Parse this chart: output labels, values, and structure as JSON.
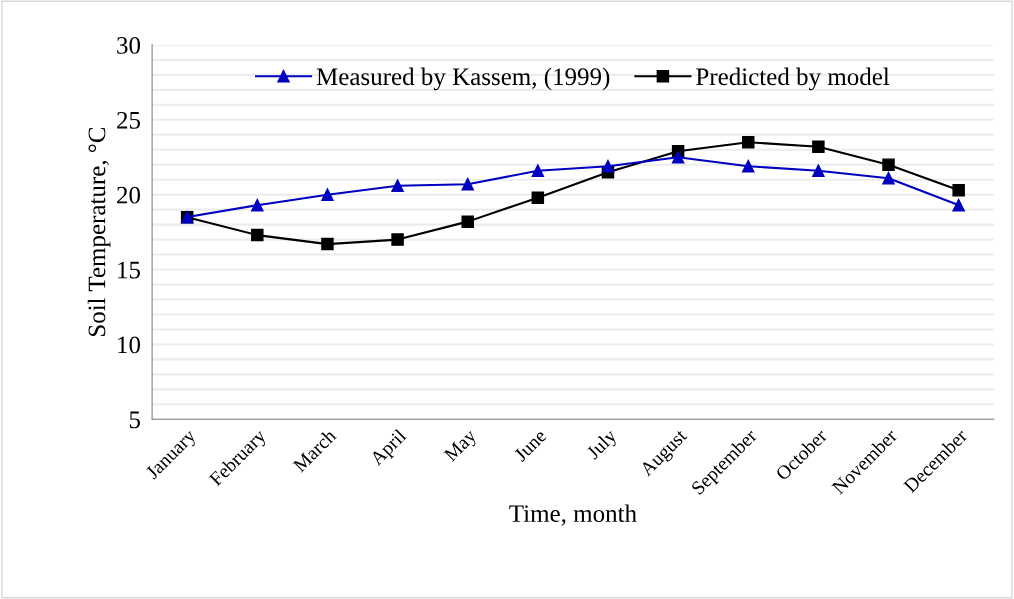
{
  "chart_data": {
    "type": "line",
    "xlabel": "Time, month",
    "ylabel": "Soil Temperature, °C",
    "categories": [
      "January",
      "February",
      "March",
      "April",
      "May",
      "June",
      "July",
      "August",
      "September",
      "October",
      "November",
      "December"
    ],
    "series": [
      {
        "name": "Measured by Kassem, (1999)",
        "color": "#0000c0",
        "marker": "triangle",
        "values": [
          18.5,
          19.3,
          20.0,
          20.6,
          20.7,
          21.6,
          21.9,
          22.5,
          21.9,
          21.6,
          21.1,
          19.3
        ]
      },
      {
        "name": "Predicted by model",
        "color": "#000000",
        "marker": "square",
        "values": [
          18.5,
          17.3,
          16.7,
          17.0,
          18.2,
          19.8,
          21.5,
          22.9,
          23.5,
          23.2,
          22.0,
          20.3
        ]
      }
    ],
    "ylim": [
      5,
      30
    ],
    "yticks": [
      5,
      {
        "value": 6,
        "label": null
      },
      {
        "value": 7,
        "label": null
      },
      {
        "value": 8,
        "label": null
      },
      {
        "value": 9,
        "label": null
      },
      10,
      {
        "value": 11,
        "label": null
      },
      {
        "value": 12,
        "label": null
      },
      {
        "value": 13,
        "label": null
      },
      {
        "value": 14,
        "label": null
      },
      15,
      {
        "value": 16,
        "label": null
      },
      {
        "value": 17,
        "label": null
      },
      {
        "value": 18,
        "label": null
      },
      {
        "value": 19,
        "label": null
      },
      20,
      {
        "value": 21,
        "label": null
      },
      {
        "value": 22,
        "label": null
      },
      {
        "value": 23,
        "label": null
      },
      {
        "value": 24,
        "label": null
      },
      25,
      {
        "value": 26,
        "label": null
      },
      {
        "value": 27,
        "label": null
      },
      {
        "value": 28,
        "label": null
      },
      {
        "value": 29,
        "label": null
      },
      30
    ],
    "grid": "y",
    "legend": "top",
    "line_style": "solid"
  }
}
